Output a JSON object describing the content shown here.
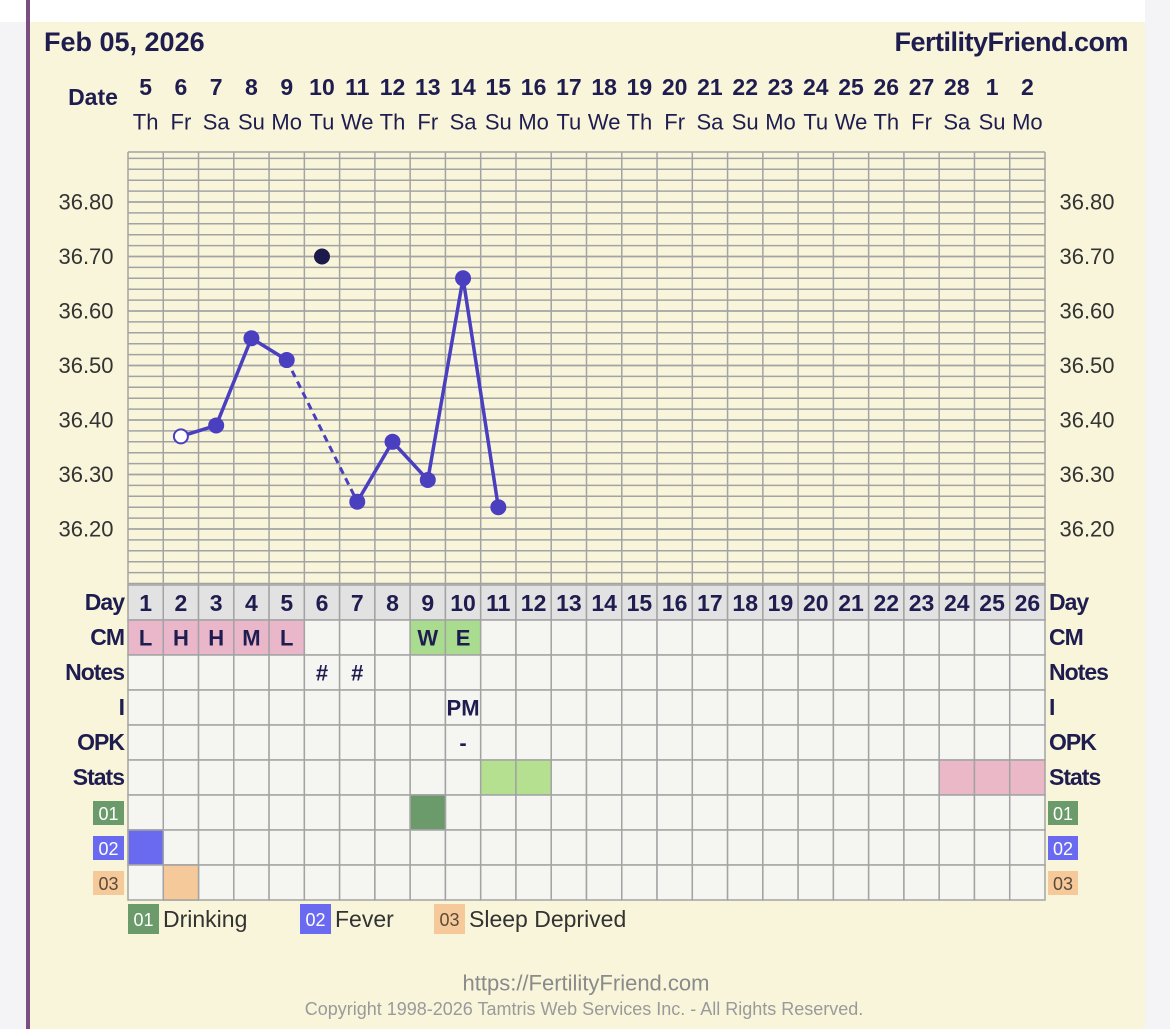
{
  "header": {
    "date": "Feb 05, 2026",
    "site": "FertilityFriend.com"
  },
  "chart_data": {
    "type": "line",
    "x_label": "Date",
    "categories": [
      "5",
      "6",
      "7",
      "8",
      "9",
      "10",
      "11",
      "12",
      "13",
      "14",
      "15",
      "16",
      "17",
      "18",
      "19",
      "20",
      "21",
      "22",
      "23",
      "24",
      "25",
      "26",
      "27",
      "28",
      "1",
      "2"
    ],
    "weekdays": [
      "Th",
      "Fr",
      "Sa",
      "Su",
      "Mo",
      "Tu",
      "We",
      "Th",
      "Fr",
      "Sa",
      "Su",
      "Mo",
      "Tu",
      "We",
      "Th",
      "Fr",
      "Sa",
      "Su",
      "Mo",
      "Tu",
      "We",
      "Th",
      "Fr",
      "Sa",
      "Su",
      "Mo"
    ],
    "series": [
      {
        "color": "#4a3fbf",
        "values": [
          null,
          36.37,
          36.39,
          36.55,
          36.51,
          null,
          36.25,
          36.36,
          36.29,
          36.66,
          36.24,
          null,
          null,
          null,
          null,
          null,
          null,
          null,
          null,
          null,
          null,
          null,
          null,
          null,
          null,
          null
        ],
        "open_markers": [
          1
        ],
        "bridge_gaps": true
      },
      {
        "color": "#1c1a4a",
        "values": [
          null,
          null,
          null,
          null,
          null,
          36.7,
          null,
          null,
          null,
          null,
          null,
          null,
          null,
          null,
          null,
          null,
          null,
          null,
          null,
          null,
          null,
          null,
          null,
          null,
          null,
          null
        ]
      }
    ],
    "ylim": [
      36.1,
      36.9
    ],
    "yticks": [
      {
        "value": 36.2,
        "label": "36.20"
      },
      {
        "value": 36.3,
        "label": "36.30"
      },
      {
        "value": 36.4,
        "label": "36.40"
      },
      {
        "value": 36.5,
        "label": "36.50"
      },
      {
        "value": 36.6,
        "label": "36.60"
      },
      {
        "value": 36.7,
        "label": "36.70"
      },
      {
        "value": 36.8,
        "label": "36.80"
      }
    ],
    "grid": true
  },
  "table": {
    "day_label": "Day",
    "cycle_days": [
      1,
      2,
      3,
      4,
      5,
      6,
      7,
      8,
      9,
      10,
      11,
      12,
      13,
      14,
      15,
      16,
      17,
      18,
      19,
      20,
      21,
      22,
      23,
      24,
      25,
      26
    ],
    "rows": [
      {
        "label": "CM",
        "cells": [
          {
            "text": "L",
            "color": "#e9b7c9"
          },
          {
            "text": "H",
            "color": "#e9b7c9"
          },
          {
            "text": "H",
            "color": "#e9b7c9"
          },
          {
            "text": "M",
            "color": "#e9b7c9"
          },
          {
            "text": "L",
            "color": "#e9b7c9"
          },
          null,
          null,
          null,
          {
            "text": "W",
            "color": "#a9dc8e"
          },
          {
            "text": "E",
            "color": "#a9dc8e"
          },
          null,
          null,
          null,
          null,
          null,
          null,
          null,
          null,
          null,
          null,
          null,
          null,
          null,
          null,
          null,
          null
        ]
      },
      {
        "label": "Notes",
        "cells": [
          null,
          null,
          null,
          null,
          null,
          {
            "text": "#"
          },
          {
            "text": "#"
          },
          null,
          null,
          null,
          null,
          null,
          null,
          null,
          null,
          null,
          null,
          null,
          null,
          null,
          null,
          null,
          null,
          null,
          null,
          null
        ]
      },
      {
        "label": "I",
        "cells": [
          null,
          null,
          null,
          null,
          null,
          null,
          null,
          null,
          null,
          {
            "text": "PM"
          },
          null,
          null,
          null,
          null,
          null,
          null,
          null,
          null,
          null,
          null,
          null,
          null,
          null,
          null,
          null,
          null
        ]
      },
      {
        "label": "OPK",
        "cells": [
          null,
          null,
          null,
          null,
          null,
          null,
          null,
          null,
          null,
          {
            "text": "-"
          },
          null,
          null,
          null,
          null,
          null,
          null,
          null,
          null,
          null,
          null,
          null,
          null,
          null,
          null,
          null,
          null
        ]
      },
      {
        "label": "Stats",
        "cells": [
          null,
          null,
          null,
          null,
          null,
          null,
          null,
          null,
          null,
          null,
          {
            "color": "#b5e08f"
          },
          {
            "color": "#b5e08f"
          },
          null,
          null,
          null,
          null,
          null,
          null,
          null,
          null,
          null,
          null,
          null,
          {
            "color": "#ebb8c8"
          },
          {
            "color": "#ebb8c8"
          },
          {
            "color": "#ebb8c8"
          }
        ]
      }
    ],
    "markers": [
      {
        "code": "01",
        "name": "Drinking",
        "color": "#6b9a6b",
        "days": [
          9
        ]
      },
      {
        "code": "02",
        "name": "Fever",
        "color": "#6a6af0",
        "days": [
          1
        ]
      },
      {
        "code": "03",
        "name": "Sleep Deprived",
        "color": "#f6c99b",
        "days": [
          2
        ]
      }
    ]
  },
  "footer": {
    "url": "https://FertilityFriend.com",
    "copyright": "Copyright 1998-2026 Tamtris Web Services Inc. - All Rights Reserved."
  }
}
